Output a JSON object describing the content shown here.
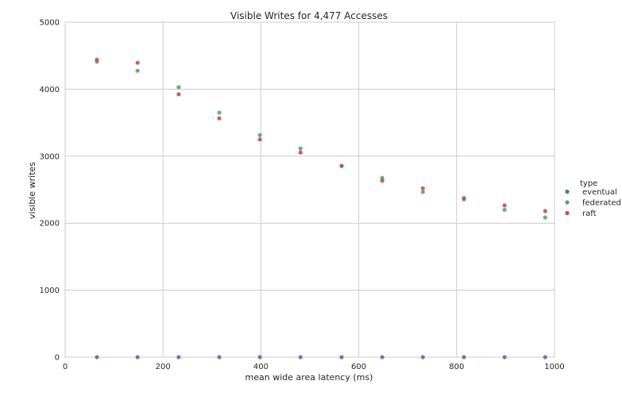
{
  "chart_data": {
    "type": "scatter",
    "title": "Visible Writes for 4,477 Accesses",
    "xlabel": "mean wide area latency (ms)",
    "ylabel": "visible writes",
    "xlim": [
      0,
      1000
    ],
    "ylim": [
      0,
      5000
    ],
    "xticks": [
      0,
      200,
      400,
      600,
      800,
      1000
    ],
    "yticks": [
      0,
      1000,
      2000,
      3000,
      4000,
      5000
    ],
    "grid": true,
    "legend": {
      "title": "type",
      "placement": "right"
    },
    "x": [
      65,
      148,
      232,
      315,
      398,
      481,
      565,
      648,
      731,
      815,
      898,
      981
    ],
    "series": [
      {
        "name": "eventual",
        "color": "#4c72b0",
        "values": [
          0,
          0,
          0,
          0,
          0,
          0,
          0,
          0,
          0,
          0,
          0,
          0
        ]
      },
      {
        "name": "federated",
        "color": "#55a868",
        "values": [
          4410,
          4275,
          4030,
          3650,
          3315,
          3115,
          2855,
          2675,
          2465,
          2355,
          2200,
          2085
        ]
      },
      {
        "name": "raft",
        "color": "#c44e52",
        "values": [
          4440,
          4395,
          3925,
          3565,
          3250,
          3055,
          2855,
          2635,
          2520,
          2375,
          2265,
          2180
        ]
      }
    ]
  }
}
